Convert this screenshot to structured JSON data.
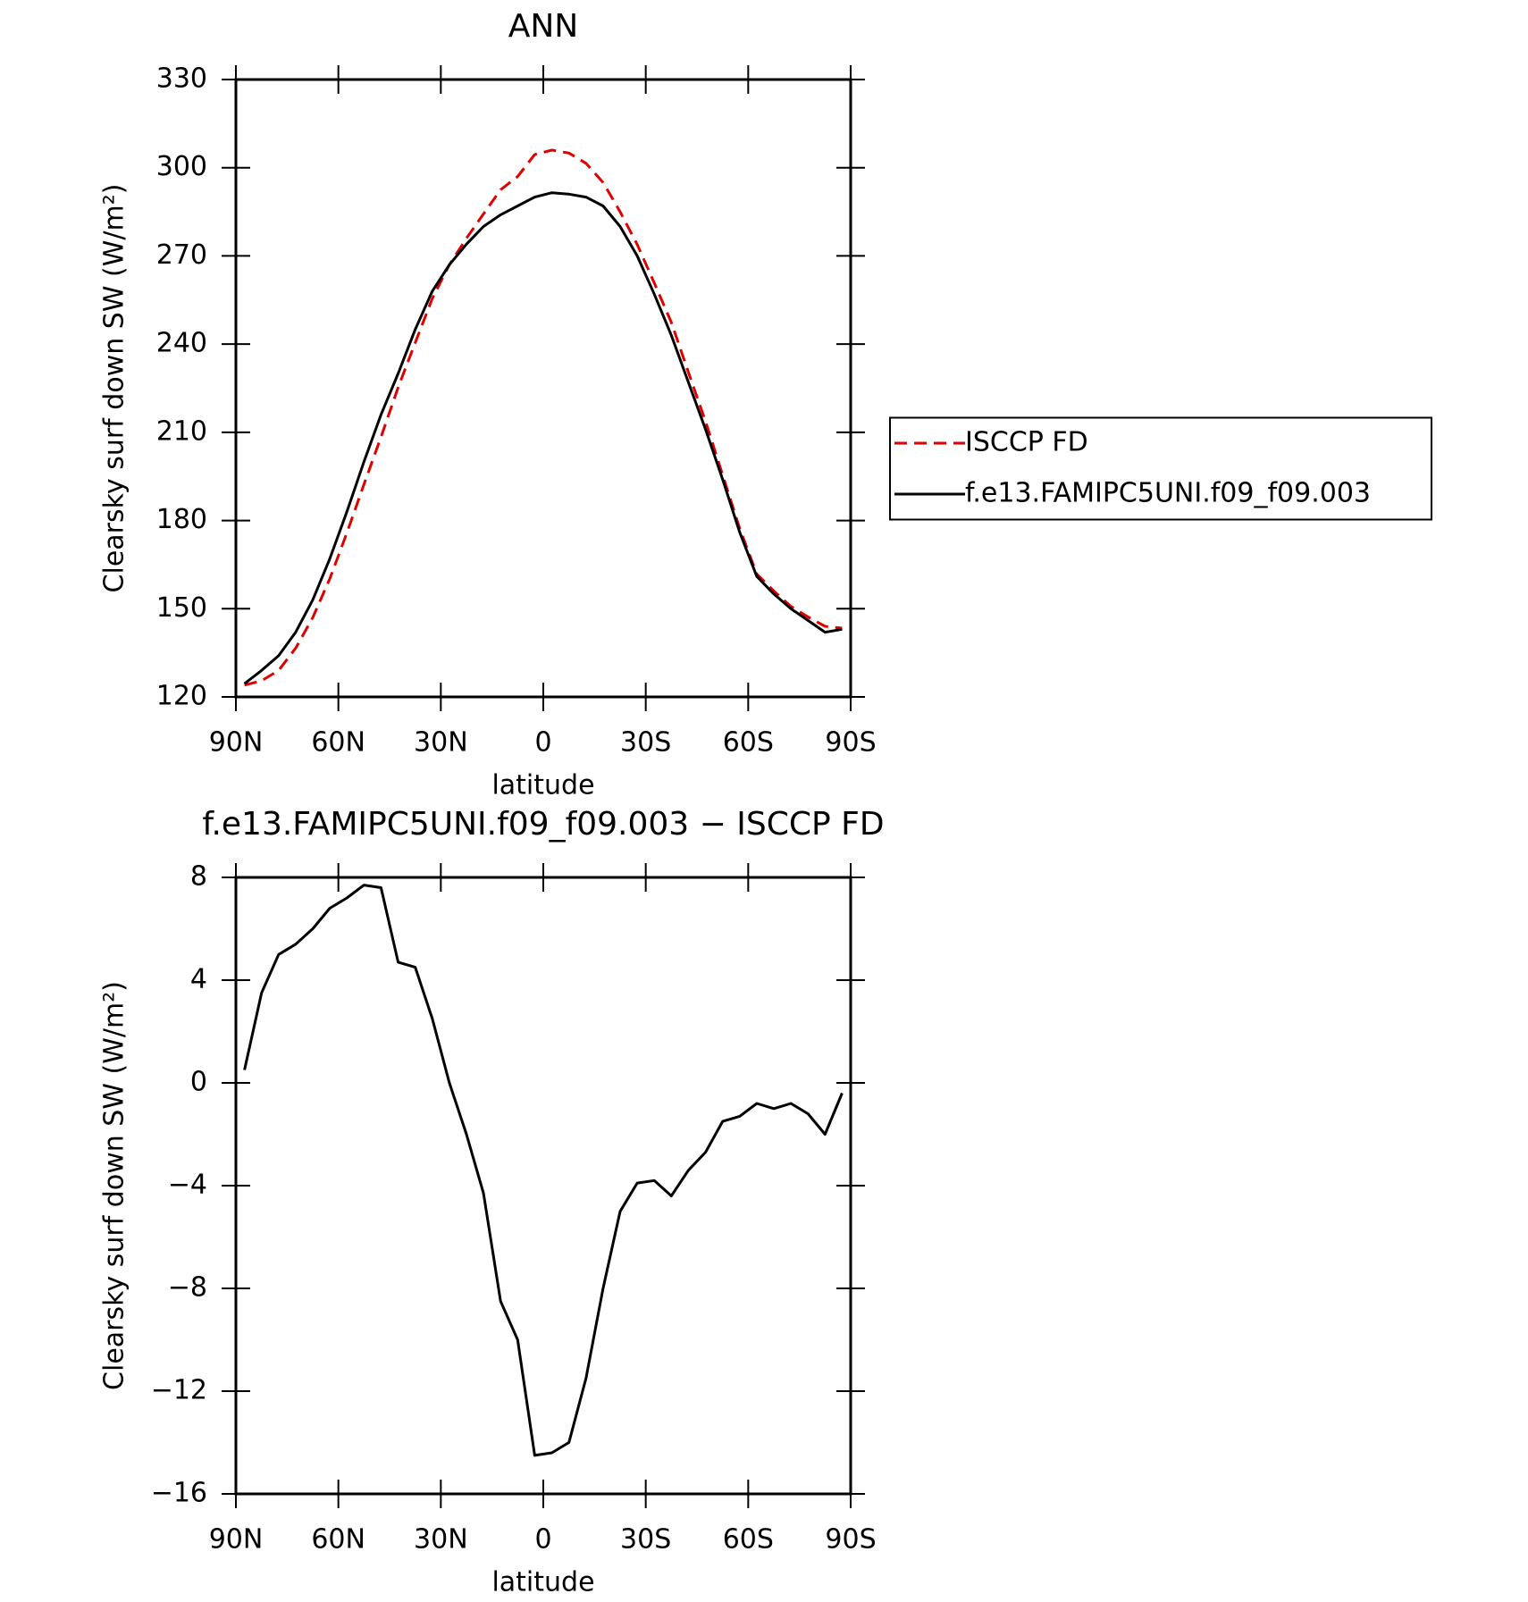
{
  "chart_data": [
    {
      "type": "line",
      "title": "ANN",
      "xlabel": "latitude",
      "ylabel": "Clearsky surf down SW (W/m²)",
      "x": [
        87.5,
        82.5,
        77.5,
        72.5,
        67.5,
        62.5,
        57.5,
        52.5,
        47.5,
        42.5,
        37.5,
        32.5,
        27.5,
        22.5,
        17.5,
        12.5,
        7.5,
        2.5,
        -2.5,
        -7.5,
        -12.5,
        -17.5,
        -22.5,
        -27.5,
        -32.5,
        -37.5,
        -42.5,
        -47.5,
        -52.5,
        -57.5,
        -62.5,
        -67.5,
        -72.5,
        -77.5,
        -82.5,
        -87.5
      ],
      "series": [
        {
          "name": "ISCCP FD",
          "color": "#e00000",
          "style": "dashed",
          "values": [
            124,
            125.5,
            129,
            136.6,
            147,
            160.2,
            175.8,
            192.3,
            208.4,
            225.3,
            240.5,
            255.5,
            267,
            276,
            284.3,
            292.5,
            297,
            304.5,
            306,
            305,
            301.5,
            295,
            285,
            273.9,
            260.8,
            247.4,
            230.4,
            213.7,
            195.5,
            177.3,
            161.8,
            156,
            150.8,
            147.2,
            144,
            143.4
          ]
        },
        {
          "name": "f.e13.FAMIPC5UNI.f09_f09.003",
          "color": "#000000",
          "style": "solid",
          "values": [
            124.5,
            129,
            134,
            142,
            153,
            167,
            183,
            200,
            216,
            230,
            245,
            258,
            267,
            274,
            280,
            284,
            287,
            290,
            291.5,
            291,
            290,
            287,
            280,
            270,
            257,
            243,
            227,
            211,
            194,
            176,
            161,
            155,
            150,
            146,
            142,
            143
          ]
        }
      ],
      "xlim": [
        90,
        -90
      ],
      "xticks": [
        {
          "value": 90,
          "label": "90N"
        },
        {
          "value": 60,
          "label": "60N"
        },
        {
          "value": 30,
          "label": "30N"
        },
        0,
        {
          "value": -30,
          "label": "30S"
        },
        {
          "value": -60,
          "label": "60S"
        },
        {
          "value": -90,
          "label": "90S"
        }
      ],
      "ylim": [
        120,
        330
      ],
      "yticks": [
        120,
        150,
        180,
        210,
        240,
        270,
        300,
        330
      ],
      "legend": "right"
    },
    {
      "type": "line",
      "title": "f.e13.FAMIPC5UNI.f09_f09.003 − ISCCP FD",
      "xlabel": "latitude",
      "ylabel": "Clearsky surf down SW (W/m²)",
      "x": [
        87.5,
        82.5,
        77.5,
        72.5,
        67.5,
        62.5,
        57.5,
        52.5,
        47.5,
        42.5,
        37.5,
        32.5,
        27.5,
        22.5,
        17.5,
        12.5,
        7.5,
        2.5,
        -2.5,
        -7.5,
        -12.5,
        -17.5,
        -22.5,
        -27.5,
        -32.5,
        -37.5,
        -42.5,
        -47.5,
        -52.5,
        -57.5,
        -62.5,
        -67.5,
        -72.5,
        -77.5,
        -82.5,
        -87.5
      ],
      "series": [
        {
          "color": "#000000",
          "style": "solid",
          "values": [
            0.5,
            3.5,
            5,
            5.4,
            6,
            6.8,
            7.2,
            7.7,
            7.6,
            4.7,
            4.5,
            2.5,
            0,
            -2,
            -4.3,
            -8.5,
            -10,
            -14.5,
            -14.4,
            -14,
            -11.5,
            -8,
            -5,
            -3.9,
            -3.8,
            -4.4,
            -3.4,
            -2.7,
            -1.5,
            -1.3,
            -0.8,
            -1.0,
            -0.8,
            -1.2,
            -2,
            -0.4
          ]
        }
      ],
      "xlim": [
        90,
        -90
      ],
      "xticks": [
        {
          "value": 90,
          "label": "90N"
        },
        {
          "value": 60,
          "label": "60N"
        },
        {
          "value": 30,
          "label": "30N"
        },
        0,
        {
          "value": -30,
          "label": "30S"
        },
        {
          "value": -60,
          "label": "60S"
        },
        {
          "value": -90,
          "label": "90S"
        }
      ],
      "ylim": [
        -16,
        8
      ],
      "yticks": [
        {
          "value": -16,
          "label": "−16"
        },
        {
          "value": -12,
          "label": "−12"
        },
        {
          "value": -8,
          "label": "−8"
        },
        {
          "value": -4,
          "label": "−4"
        },
        0,
        4,
        8
      ]
    }
  ]
}
